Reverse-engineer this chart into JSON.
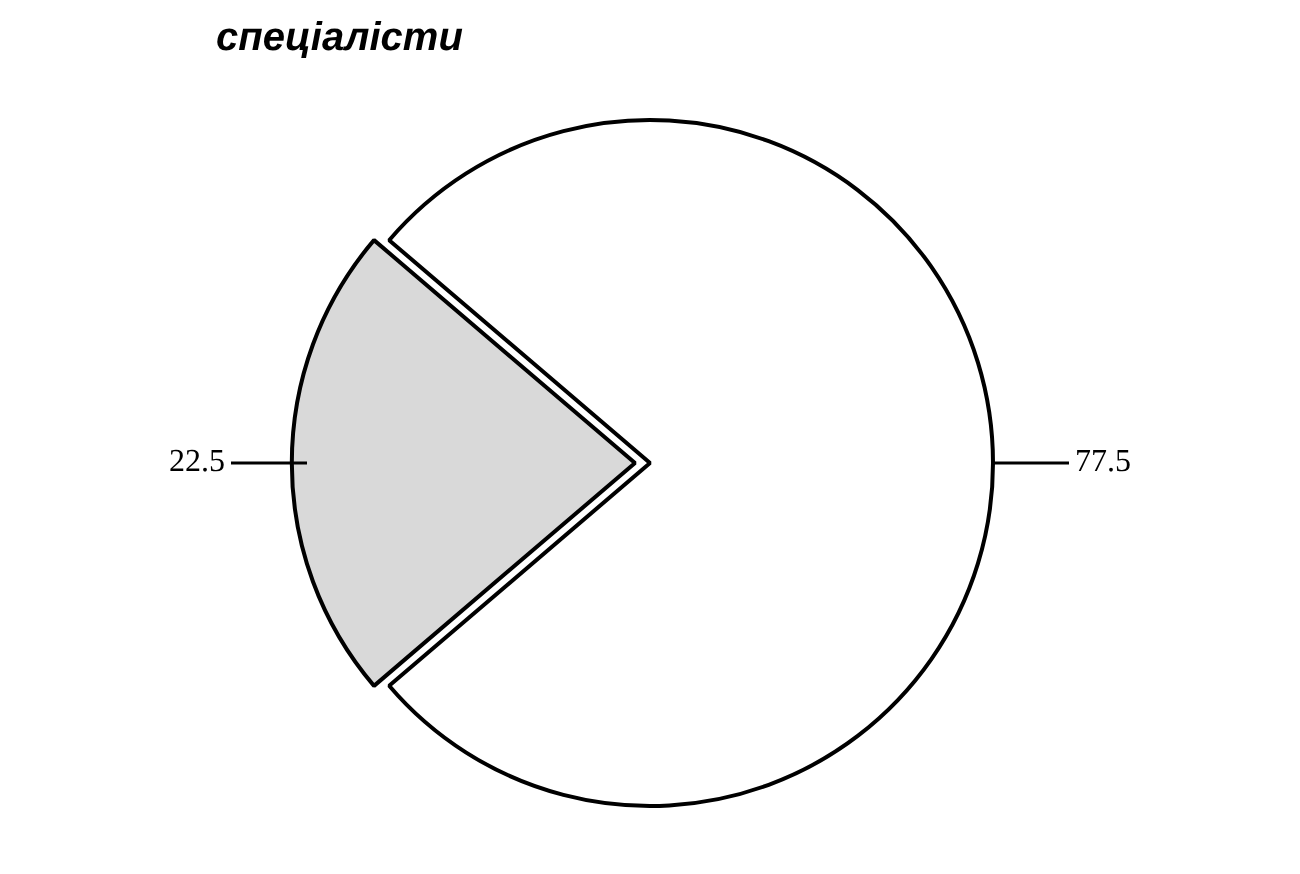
{
  "chart_data": {
    "type": "pie",
    "title": "спеціалісти",
    "categories": [
      null,
      null
    ],
    "values": [
      22.5,
      77.5
    ],
    "colors": [
      "#d9d9d9",
      "#ffffff"
    ],
    "data_labels": true,
    "legend": false
  }
}
